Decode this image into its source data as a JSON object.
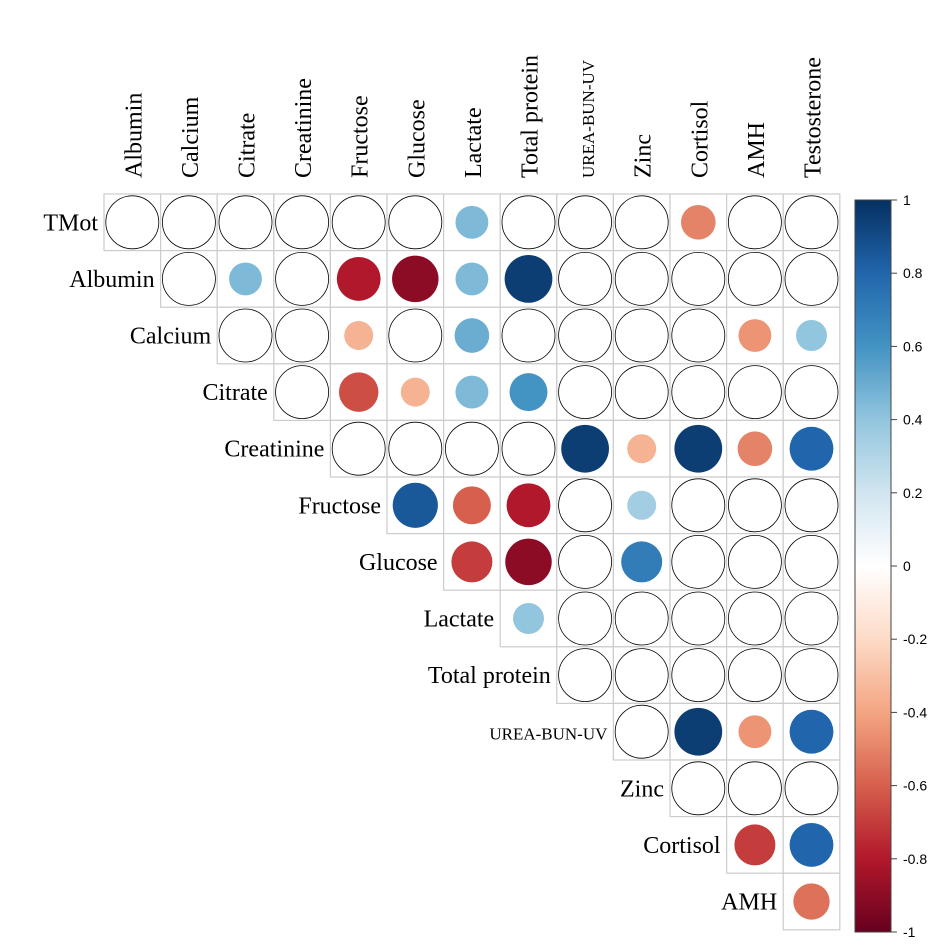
{
  "chart_data": {
    "type": "heatmap",
    "title": "",
    "column_labels": [
      "Albumin",
      "Calcium",
      "Citrate",
      "Creatinine",
      "Fructose",
      "Glucose",
      "Lactate",
      "Total protein",
      "UREA-BUN-UV",
      "Zinc",
      "Cortisol",
      "AMH",
      "Testosterone"
    ],
    "row_labels": [
      "TMot",
      "Albumin",
      "Calcium",
      "Citrate",
      "Creatinine",
      "Fructose",
      "Glucose",
      "Lactate",
      "Total protein",
      "UREA-BUN-UV",
      "Zinc",
      "Cortisol",
      "AMH"
    ],
    "values": [
      [
        0,
        0,
        0,
        0,
        0,
        0,
        0.45,
        0,
        0,
        0,
        -0.5,
        0,
        0
      ],
      [
        null,
        0,
        0.45,
        0,
        -0.8,
        -0.9,
        0.45,
        0.95,
        0,
        0,
        0,
        0,
        0
      ],
      [
        null,
        null,
        0,
        0,
        -0.35,
        0,
        0.5,
        0,
        0,
        0,
        0,
        -0.45,
        0.4
      ],
      [
        null,
        null,
        null,
        0,
        -0.65,
        -0.35,
        0.45,
        0.6,
        0,
        0,
        0,
        0,
        0
      ],
      [
        null,
        null,
        null,
        null,
        0,
        0,
        0,
        0,
        0.95,
        -0.35,
        0.95,
        -0.5,
        0.8
      ],
      [
        null,
        null,
        null,
        null,
        null,
        0.85,
        -0.6,
        -0.8,
        0,
        0.35,
        0,
        0,
        0
      ],
      [
        null,
        null,
        null,
        null,
        null,
        null,
        -0.7,
        -0.9,
        0,
        0.7,
        0,
        0,
        0
      ],
      [
        null,
        null,
        null,
        null,
        null,
        null,
        null,
        0.4,
        0,
        0,
        0,
        0,
        0
      ],
      [
        null,
        null,
        null,
        null,
        null,
        null,
        null,
        null,
        0,
        0,
        0,
        0,
        0
      ],
      [
        null,
        null,
        null,
        null,
        null,
        null,
        null,
        null,
        null,
        0,
        0.95,
        -0.45,
        0.8
      ],
      [
        null,
        null,
        null,
        null,
        null,
        null,
        null,
        null,
        null,
        null,
        0,
        0,
        0
      ],
      [
        null,
        null,
        null,
        null,
        null,
        null,
        null,
        null,
        null,
        null,
        null,
        -0.7,
        0.8
      ],
      [
        null,
        null,
        null,
        null,
        null,
        null,
        null,
        null,
        null,
        null,
        null,
        null,
        -0.55
      ]
    ],
    "color_scale": {
      "domain": [
        -1,
        1
      ],
      "ticks": [
        "1",
        "0.8",
        "0.6",
        "0.4",
        "0.2",
        "0",
        "-0.2",
        "-0.4",
        "-0.6",
        "-0.8",
        "-1"
      ],
      "stops": [
        "#67001f",
        "#b2182b",
        "#d6604d",
        "#f4a582",
        "#fddbc7",
        "#ffffff",
        "#d1e5f0",
        "#92c5de",
        "#4393c3",
        "#2166ac",
        "#053061"
      ]
    },
    "grid": true,
    "legend": "right"
  }
}
